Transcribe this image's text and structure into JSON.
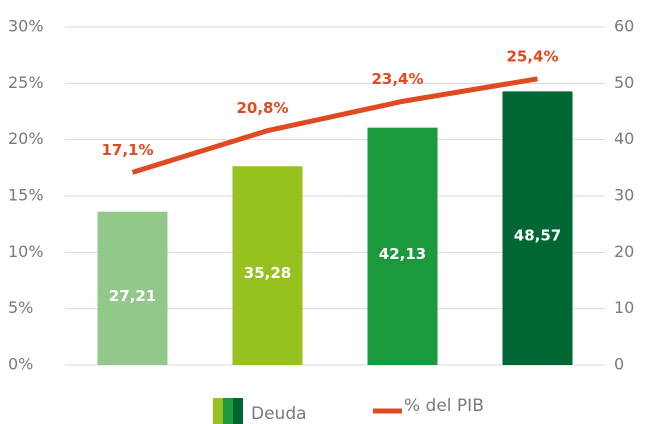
{
  "chart_data": {
    "type": "bar",
    "categories": [
      null,
      null,
      null,
      null
    ],
    "series": [
      {
        "name": "Deuda",
        "type": "bar",
        "axis": "y2",
        "colors": [
          "#92c88a",
          "#97c11f",
          "#1a9a3c",
          "#006633"
        ],
        "values": [
          27.21,
          35.28,
          42.13,
          48.57
        ],
        "value_labels": [
          "27,21",
          "35,28",
          "42,13",
          "48,57"
        ]
      },
      {
        "name": "% del PIB",
        "type": "line",
        "color": "#e04a21",
        "values": [
          17.1,
          20.8,
          23.4,
          25.4
        ],
        "value_labels": [
          "17,1%",
          "20,8%",
          "23,4%",
          "25,4%"
        ]
      }
    ],
    "ylim": [
      0,
      30
    ],
    "yticks": [
      {
        "value": 0,
        "label": "0%"
      },
      {
        "value": 5,
        "label": "5%"
      },
      {
        "value": 10,
        "label": "10%"
      },
      {
        "value": 15,
        "label": "15%"
      },
      {
        "value": 20,
        "label": "20%"
      },
      {
        "value": 25,
        "label": "25%"
      },
      {
        "value": 30,
        "label": "30%"
      }
    ],
    "y2lim": [
      0,
      60
    ],
    "y2ticks": [
      0,
      10,
      20,
      30,
      40,
      50,
      60
    ],
    "grid": true
  }
}
